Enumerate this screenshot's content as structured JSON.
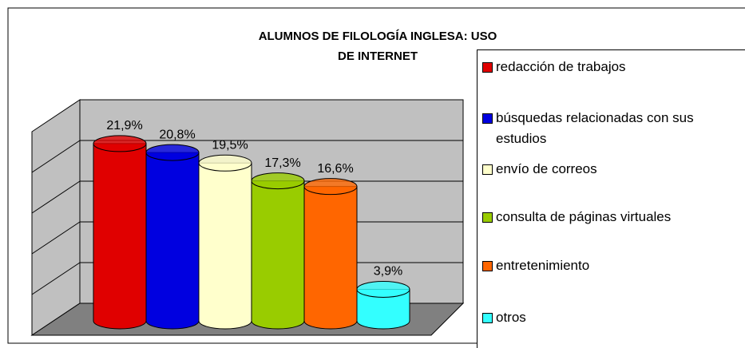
{
  "chart_data": {
    "type": "bar",
    "title": "ALUMNOS DE FILOLOGÍA INGLESA: USO DE INTERNET",
    "categories": [
      "redacción de trabajos",
      "búsquedas relacionadas con sus estudios",
      "envío de correos",
      "consulta de páginas virtuales",
      "entretenimiento",
      "otros"
    ],
    "values": [
      21.9,
      20.8,
      19.5,
      17.3,
      16.6,
      3.9
    ],
    "value_labels": [
      "21,9%",
      "20,8%",
      "19,5%",
      "17,3%",
      "16,6%",
      "3,9%"
    ],
    "colors": [
      "#e00000",
      "#0000e0",
      "#ffffcc",
      "#99cc00",
      "#ff6600",
      "#33ffff"
    ],
    "ylim": [
      0,
      25
    ]
  }
}
